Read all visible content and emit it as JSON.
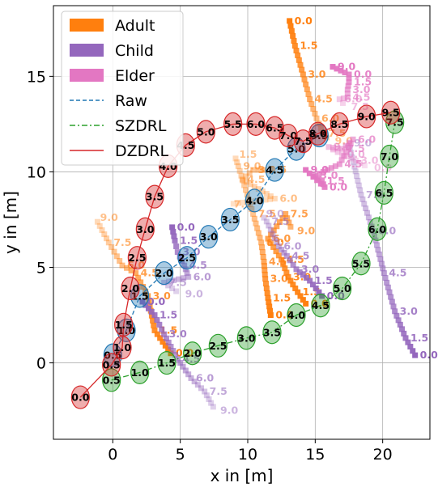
{
  "chart_data": {
    "type": "scatter",
    "xlabel": "x in [m]",
    "ylabel": "y in [m]",
    "xlim": [
      -4.4,
      23.5
    ],
    "ylim": [
      -4.0,
      18.7
    ],
    "xticks": [
      0,
      5,
      10,
      15,
      20
    ],
    "yticks": [
      0,
      5,
      10,
      15
    ],
    "grid": true,
    "legend_position": "top-left",
    "legend": [
      {
        "label": "Adult",
        "kind": "patch",
        "color": "#ff7f0e"
      },
      {
        "label": "Child",
        "kind": "patch",
        "color": "#9467bd"
      },
      {
        "label": "Elder",
        "kind": "patch",
        "color": "#e377c2"
      },
      {
        "label": "Raw",
        "kind": "line",
        "color": "#1f77b4",
        "dash": "dashed"
      },
      {
        "label": "SZDRL",
        "kind": "line",
        "color": "#2ca02c",
        "dash": "dashdot"
      },
      {
        "label": "DZDRL",
        "kind": "line",
        "color": "#d62728",
        "dash": "solid"
      }
    ],
    "humans": [
      {
        "type": "Adult",
        "color": "#ff7f0e",
        "labels": [
          {
            "t": "0.0",
            "x": 13.1,
            "y": 17.9
          },
          {
            "t": "1.5",
            "x": 13.5,
            "y": 16.6
          },
          {
            "t": "3.0",
            "x": 14.1,
            "y": 15.1
          },
          {
            "t": "4.5",
            "x": 14.6,
            "y": 13.8
          },
          {
            "t": "6.0",
            "x": 15.1,
            "y": 12.8
          },
          {
            "t": "7.5",
            "x": 15.6,
            "y": 12.0
          },
          {
            "t": "9.0",
            "x": 16.1,
            "y": 11.6
          }
        ]
      },
      {
        "type": "Adult",
        "color": "#ff7f0e",
        "labels": [
          {
            "t": "0.0",
            "x": 11.7,
            "y": 2.5
          },
          {
            "t": "1.5",
            "x": 11.5,
            "y": 3.4
          },
          {
            "t": "3.0",
            "x": 11.3,
            "y": 4.4
          },
          {
            "t": "4.5",
            "x": 11.2,
            "y": 5.3
          },
          {
            "t": "6.0",
            "x": 11.0,
            "y": 6.3
          },
          {
            "t": "7.5",
            "x": 10.4,
            "y": 7.8
          },
          {
            "t": "9.0",
            "x": 9.3,
            "y": 10.3
          },
          {
            "t": "1.5",
            "x": 9.0,
            "y": 10.9
          }
        ]
      },
      {
        "type": "Adult",
        "color": "#ff7f0e",
        "labels": [
          {
            "t": "0.0",
            "x": 14.3,
            "y": 3.1
          },
          {
            "t": "1.5",
            "x": 13.7,
            "y": 3.7
          },
          {
            "t": "3.0",
            "x": 13.0,
            "y": 4.5
          },
          {
            "t": "4.5",
            "x": 12.5,
            "y": 5.4
          },
          {
            "t": "6.0",
            "x": 11.5,
            "y": 6.5
          },
          {
            "t": "7.5",
            "x": 12.8,
            "y": 7.8
          },
          {
            "t": "9.0",
            "x": 13.3,
            "y": 6.9
          },
          {
            "t": "1.5",
            "x": 11.2,
            "y": 10.1
          },
          {
            "t": "3.0",
            "x": 10.4,
            "y": 10.1
          },
          {
            "t": "4.5",
            "x": 9.6,
            "y": 9.6
          },
          {
            "t": "6.0",
            "x": 12.0,
            "y": 8.6
          },
          {
            "t": "7.5",
            "x": 8.6,
            "y": 8.3
          }
        ]
      },
      {
        "type": "Adult",
        "color": "#ff7f0e",
        "labels": [
          {
            "t": "0.0",
            "x": 4.3,
            "y": 0.5
          },
          {
            "t": "1.5",
            "x": 3.1,
            "y": 1.7
          },
          {
            "t": "3.0",
            "x": 2.6,
            "y": 3.5
          },
          {
            "t": "4.5",
            "x": 1.7,
            "y": 4.7
          },
          {
            "t": "6.0",
            "x": 0.7,
            "y": 5.1
          },
          {
            "t": "7.5",
            "x": -0.3,
            "y": 6.3
          },
          {
            "t": "9.0",
            "x": -1.3,
            "y": 7.6
          }
        ]
      },
      {
        "type": "Child",
        "color": "#9467bd",
        "labels": [
          {
            "t": "0.0",
            "x": 22.4,
            "y": 0.4
          },
          {
            "t": "1.5",
            "x": 21.7,
            "y": 1.3
          },
          {
            "t": "3.0",
            "x": 20.9,
            "y": 2.7
          },
          {
            "t": "4.5",
            "x": 20.1,
            "y": 4.7
          },
          {
            "t": "6.0",
            "x": 19.3,
            "y": 6.9
          },
          {
            "t": "7.5",
            "x": 18.4,
            "y": 8.8
          },
          {
            "t": "9.0",
            "x": 17.5,
            "y": 11.5
          }
        ]
      },
      {
        "type": "Child",
        "color": "#9467bd",
        "labels": [
          {
            "t": "0.0",
            "x": 4.4,
            "y": 7.1
          },
          {
            "t": "1.5",
            "x": 4.6,
            "y": 6.4
          },
          {
            "t": "3.0",
            "x": 4.8,
            "y": 5.8
          },
          {
            "t": "4.5",
            "x": 5.3,
            "y": 5.1
          },
          {
            "t": "6.0",
            "x": 5.6,
            "y": 4.5
          },
          {
            "t": "7.5",
            "x": 3.8,
            "y": 4.2
          },
          {
            "t": "9.0",
            "x": 5.0,
            "y": 3.6
          }
        ]
      },
      {
        "type": "Child",
        "color": "#9467bd",
        "labels": [
          {
            "t": "0.0",
            "x": 15.5,
            "y": 3.5
          },
          {
            "t": "1.5",
            "x": 14.6,
            "y": 4.3
          },
          {
            "t": "3.0",
            "x": 13.6,
            "y": 4.9
          },
          {
            "t": "4.5",
            "x": 12.9,
            "y": 5.6
          },
          {
            "t": "6.0",
            "x": 12.3,
            "y": 6.1
          },
          {
            "t": "7.5",
            "x": 11.4,
            "y": 7.4
          },
          {
            "t": "9.0",
            "x": 11.0,
            "y": 7.8
          }
        ]
      },
      {
        "type": "Child",
        "color": "#9467bd",
        "labels": [
          {
            "t": "0.0",
            "x": 2.2,
            "y": 3.2
          },
          {
            "t": "1.5",
            "x": 3.1,
            "y": 2.5
          },
          {
            "t": "3.0",
            "x": 3.8,
            "y": 1.5
          },
          {
            "t": "4.5",
            "x": 4.8,
            "y": 0.2
          },
          {
            "t": "6.0",
            "x": 5.8,
            "y": -0.8
          },
          {
            "t": "7.5",
            "x": 6.8,
            "y": -1.5
          },
          {
            "t": "9.0",
            "x": 7.6,
            "y": -2.5
          }
        ]
      },
      {
        "type": "Elder",
        "color": "#e377c2",
        "labels": [
          {
            "t": "9.0",
            "x": 16.3,
            "y": 15.5
          },
          {
            "t": "0.0",
            "x": 17.5,
            "y": 15.1
          },
          {
            "t": "1.5",
            "x": 17.5,
            "y": 14.7
          },
          {
            "t": "3.0",
            "x": 17.4,
            "y": 14.3
          },
          {
            "t": "4.5",
            "x": 17.4,
            "y": 13.9
          },
          {
            "t": "6.0",
            "x": 16.8,
            "y": 13.8
          },
          {
            "t": "7.5",
            "x": 17.3,
            "y": 13.4
          }
        ]
      },
      {
        "type": "Elder",
        "color": "#e377c2",
        "labels": [
          {
            "t": "9.0",
            "x": 14.3,
            "y": 10.1
          },
          {
            "t": "0.0",
            "x": 15.7,
            "y": 9.2
          },
          {
            "t": "1.5",
            "x": 15.5,
            "y": 9.5
          },
          {
            "t": "3.0",
            "x": 15.0,
            "y": 9.8
          },
          {
            "t": "4.5",
            "x": 16.8,
            "y": 10.4
          },
          {
            "t": "6.0",
            "x": 17.8,
            "y": 11.7
          },
          {
            "t": "7.5",
            "x": 17.0,
            "y": 11.2
          },
          {
            "t": "9.0",
            "x": 16.0,
            "y": 11.3
          },
          {
            "t": "0.0",
            "x": 17.0,
            "y": 10.9
          },
          {
            "t": "3.0",
            "x": 18.0,
            "y": 10.6
          },
          {
            "t": "0.0",
            "x": 19.0,
            "y": 10.2
          }
        ]
      }
    ],
    "robots": [
      {
        "name": "DZDRL",
        "color": "#d62728",
        "dash": "solid",
        "times": [
          {
            "t": "0.0",
            "x": -2.4,
            "y": -1.8
          },
          {
            "t": "0.5",
            "x": -0.1,
            "y": -0.1
          },
          {
            "t": "1.0",
            "x": 0.7,
            "y": 0.8
          },
          {
            "t": "1.5",
            "x": 0.8,
            "y": 2.0
          },
          {
            "t": "2.0",
            "x": 1.3,
            "y": 3.9
          },
          {
            "t": "2.5",
            "x": 1.8,
            "y": 5.5
          },
          {
            "t": "3.0",
            "x": 2.4,
            "y": 7.0
          },
          {
            "t": "3.5",
            "x": 3.1,
            "y": 8.7
          },
          {
            "t": "4.0",
            "x": 4.1,
            "y": 10.3
          },
          {
            "t": "4.5",
            "x": 5.4,
            "y": 11.4
          },
          {
            "t": "5.0",
            "x": 6.9,
            "y": 12.1
          },
          {
            "t": "5.5",
            "x": 8.9,
            "y": 12.5
          },
          {
            "t": "6.0",
            "x": 10.6,
            "y": 12.5
          },
          {
            "t": "6.5",
            "x": 12.0,
            "y": 12.3
          },
          {
            "t": "7.0",
            "x": 13.0,
            "y": 11.9
          },
          {
            "t": "7.5",
            "x": 14.1,
            "y": 11.6
          },
          {
            "t": "8.0",
            "x": 15.2,
            "y": 12.0
          },
          {
            "t": "8.5",
            "x": 16.8,
            "y": 12.5
          },
          {
            "t": "9.0",
            "x": 18.8,
            "y": 12.9
          },
          {
            "t": "9.5",
            "x": 20.6,
            "y": 13.1
          }
        ]
      },
      {
        "name": "SZDRL",
        "color": "#2ca02c",
        "dash": "dashdot",
        "times": [
          {
            "t": "0.5",
            "x": -0.1,
            "y": -0.9
          },
          {
            "t": "1.0",
            "x": 2.0,
            "y": -0.5
          },
          {
            "t": "1.5",
            "x": 4.0,
            "y": 0.0
          },
          {
            "t": "2.0",
            "x": 5.9,
            "y": 0.5
          },
          {
            "t": "2.5",
            "x": 7.8,
            "y": 0.9
          },
          {
            "t": "3.0",
            "x": 9.9,
            "y": 1.3
          },
          {
            "t": "3.5",
            "x": 11.8,
            "y": 1.6
          },
          {
            "t": "4.0",
            "x": 13.6,
            "y": 2.5
          },
          {
            "t": "4.5",
            "x": 15.4,
            "y": 3.0
          },
          {
            "t": "5.0",
            "x": 17.0,
            "y": 3.9
          },
          {
            "t": "5.5",
            "x": 18.4,
            "y": 5.2
          },
          {
            "t": "6.0",
            "x": 19.6,
            "y": 7.0
          },
          {
            "t": "6.5",
            "x": 20.1,
            "y": 8.9
          },
          {
            "t": "7.0",
            "x": 20.5,
            "y": 10.8
          },
          {
            "t": "7.5",
            "x": 20.9,
            "y": 12.6
          }
        ]
      },
      {
        "name": "Raw",
        "color": "#1f77b4",
        "dash": "dashed",
        "times": [
          {
            "t": "0.5",
            "x": 0.0,
            "y": 0.4
          },
          {
            "t": "1.0",
            "x": 1.0,
            "y": 1.7
          },
          {
            "t": "1.5",
            "x": 2.0,
            "y": 3.5
          },
          {
            "t": "2.0",
            "x": 3.8,
            "y": 4.7
          },
          {
            "t": "2.5",
            "x": 5.5,
            "y": 5.5
          },
          {
            "t": "3.0",
            "x": 7.1,
            "y": 6.6
          },
          {
            "t": "3.5",
            "x": 8.7,
            "y": 7.5
          },
          {
            "t": "4.0",
            "x": 10.5,
            "y": 8.5
          },
          {
            "t": "4.5",
            "x": 12.0,
            "y": 10.1
          },
          {
            "t": "5.0",
            "x": 13.6,
            "y": 11.2
          },
          {
            "t": "5.5",
            "x": 15.3,
            "y": 11.9
          }
        ]
      }
    ]
  }
}
